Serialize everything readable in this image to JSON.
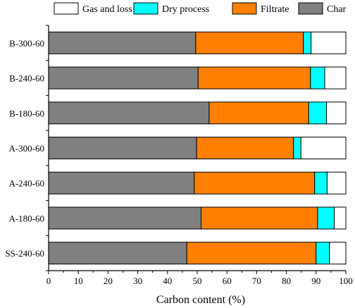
{
  "chart_data": {
    "type": "bar",
    "orientation": "horizontal",
    "stacked": true,
    "title": "",
    "xlabel": "Carbon content (%)",
    "ylabel": "",
    "xlim": [
      0,
      100
    ],
    "x_ticks": [
      "0",
      "10",
      "20",
      "30",
      "40",
      "50",
      "60",
      "70",
      "80",
      "90",
      "100"
    ],
    "categories": [
      "B-300-60",
      "B-240-60",
      "B-180-60",
      "A-300-60",
      "A-240-60",
      "A-180-60",
      "SS-240-60"
    ],
    "series": [
      {
        "name": "Char",
        "color": "#808080",
        "values": [
          49.5,
          50.3,
          54.0,
          49.8,
          49.0,
          51.3,
          46.5
        ]
      },
      {
        "name": "Filtrate",
        "color": "#FF8000",
        "values": [
          36.2,
          37.8,
          33.5,
          32.6,
          40.5,
          39.2,
          43.5
        ]
      },
      {
        "name": "Dry process",
        "color": "#00FFFF",
        "values": [
          2.6,
          4.8,
          6.0,
          2.5,
          4.2,
          5.6,
          4.5
        ]
      },
      {
        "name": "Gas and loss",
        "color": "#FFFFFF",
        "values": [
          11.7,
          7.1,
          6.5,
          15.1,
          6.3,
          3.9,
          5.5
        ]
      }
    ],
    "legend": {
      "placement": "top",
      "order": [
        "Gas and loss",
        "Dry process",
        "Filtrate",
        "Char"
      ]
    },
    "grid": false
  }
}
